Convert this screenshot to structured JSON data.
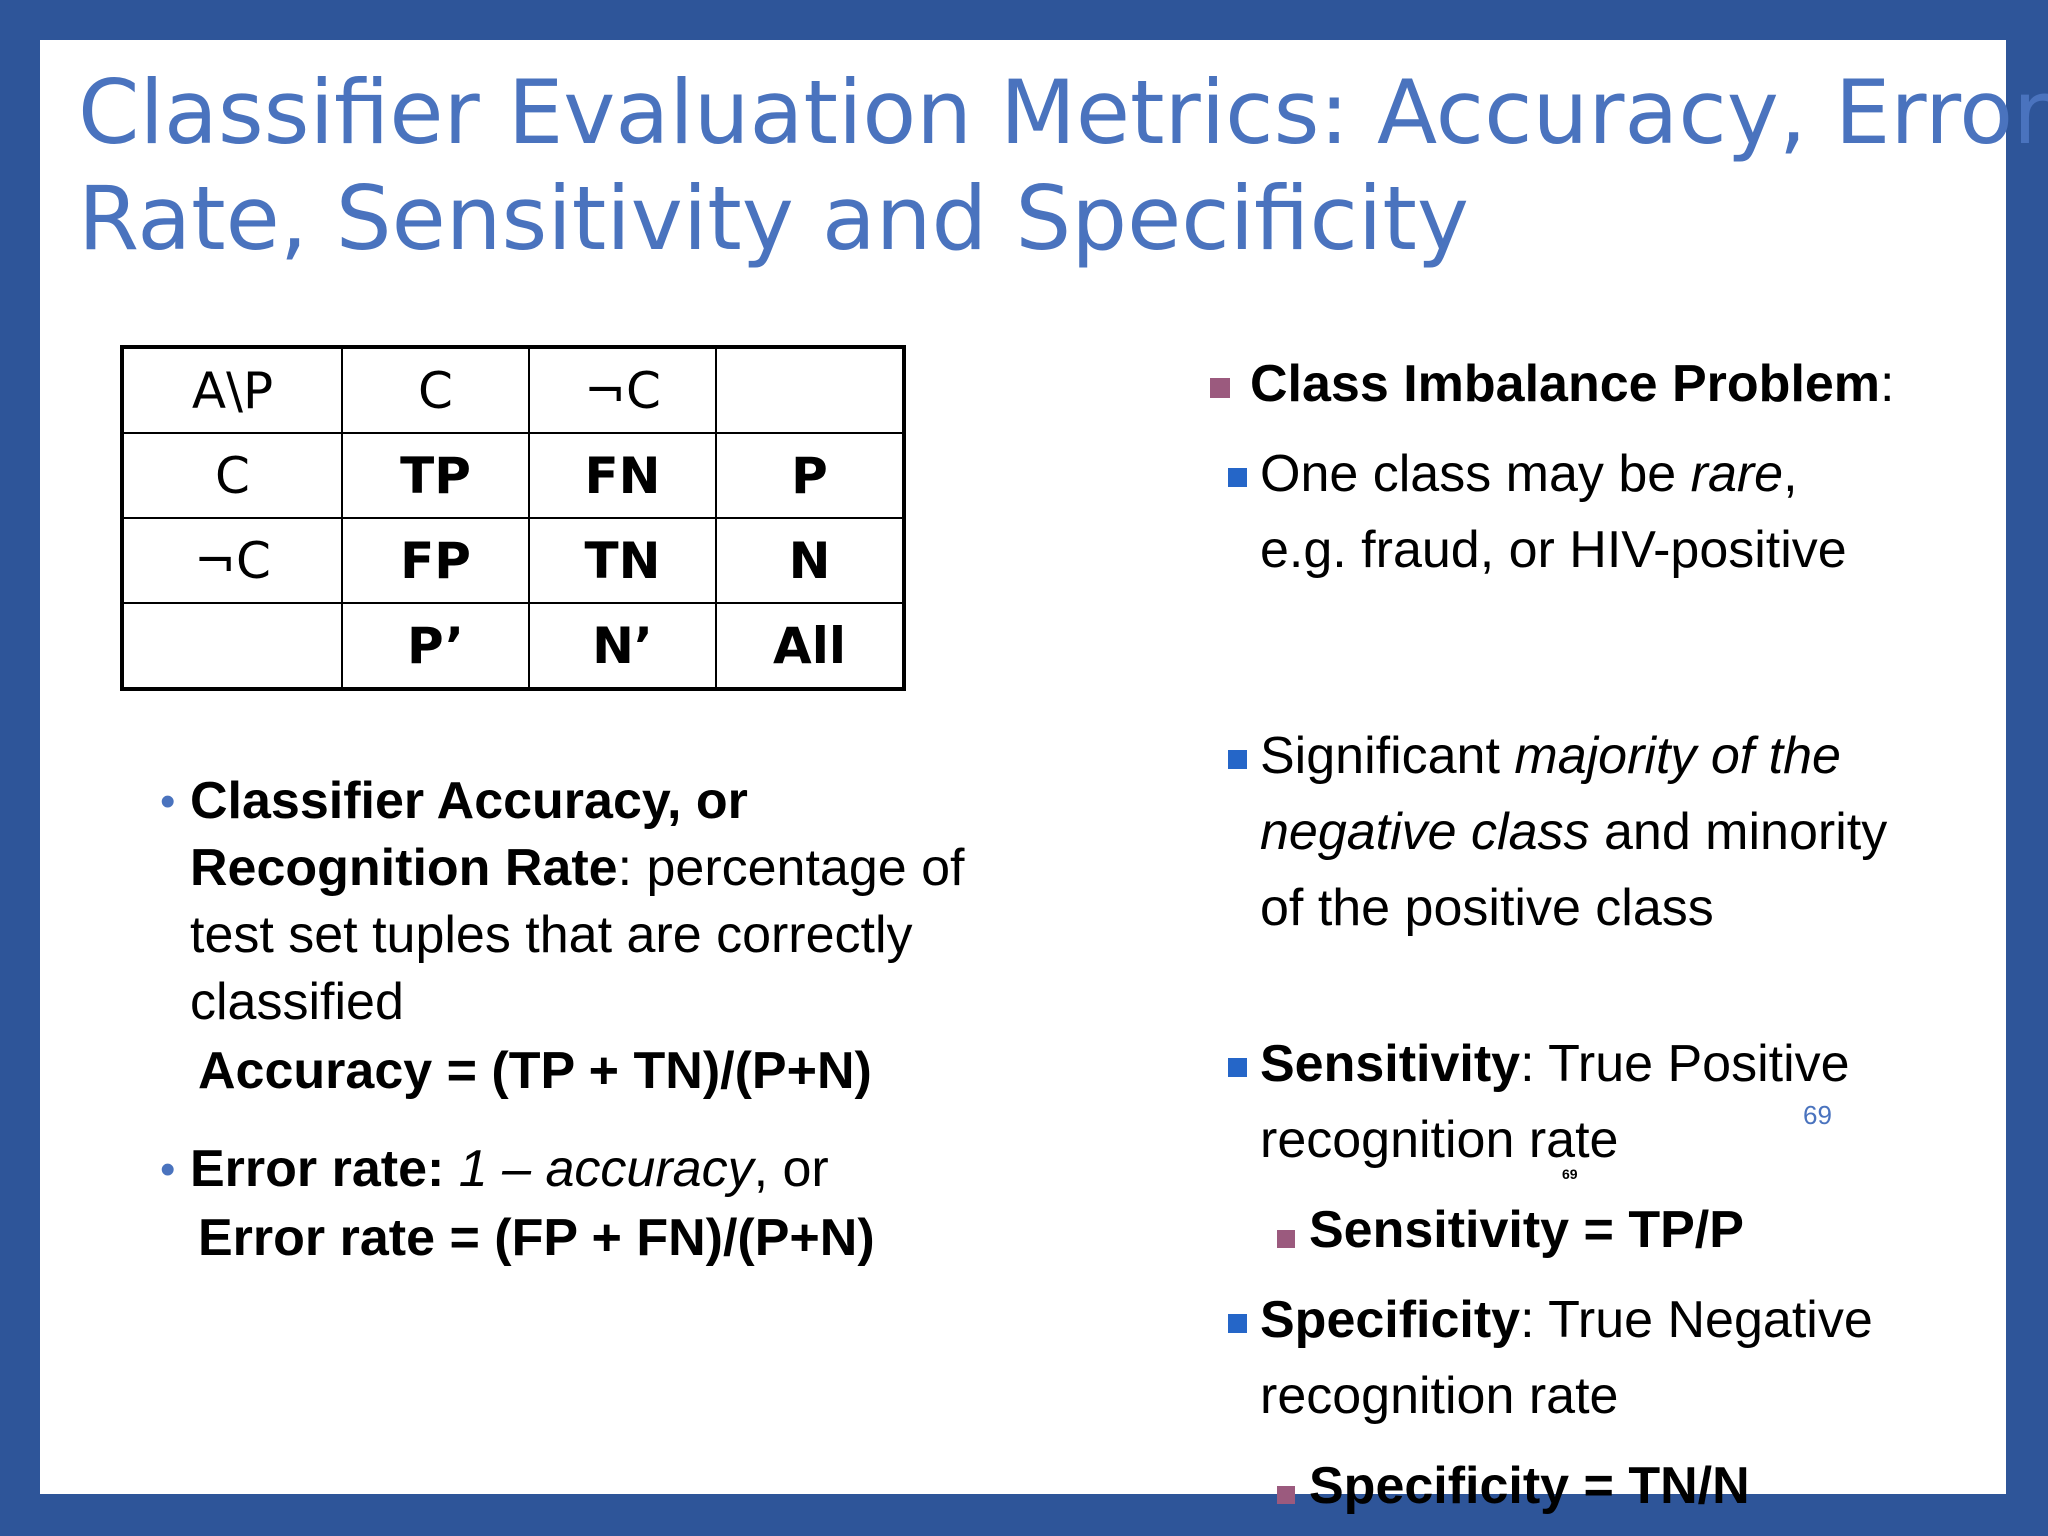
{
  "title": {
    "line1": "Classifier Evaluation Metrics: Accuracy, Error",
    "line2": "Rate, Sensitivity and Specificity"
  },
  "matrix": {
    "rows": [
      [
        "A\\P",
        "C",
        "¬C",
        ""
      ],
      [
        "C",
        "TP",
        "FN",
        "P"
      ],
      [
        "¬C",
        "FP",
        "TN",
        "N"
      ],
      [
        "",
        "P’",
        "N’",
        "All"
      ]
    ]
  },
  "accuracy": {
    "term": "Classifier Accuracy, or Recognition Rate",
    "desc": ": percentage of test set tuples that are correctly classified",
    "formula": "Accuracy = (TP + TN)/(P+N)"
  },
  "error": {
    "term": "Error rate:",
    "expr": "1 – accuracy",
    "suffix": ", or",
    "formula": "Error rate = (FP + FN)/(P+N)"
  },
  "imbalance": {
    "heading": "Class Imbalance Problem",
    "colon": ":",
    "rare_pre": "One class may be ",
    "rare_em": "rare",
    "rare_post": ", e.g. fraud, or HIV-positive",
    "maj_pre": "Significant ",
    "maj_em": "majority of the negative class",
    "maj_post": " and minority of the positive class",
    "sens_term": "Sensitivity",
    "sens_desc": ": True Positive recognition rate",
    "sens_formula": "Sensitivity = TP/P",
    "spec_term": "Specificity",
    "spec_desc": ": True Negative recognition rate",
    "spec_formula": "Specificity = TN/N"
  },
  "page_number": "69",
  "overlay_number": "69"
}
